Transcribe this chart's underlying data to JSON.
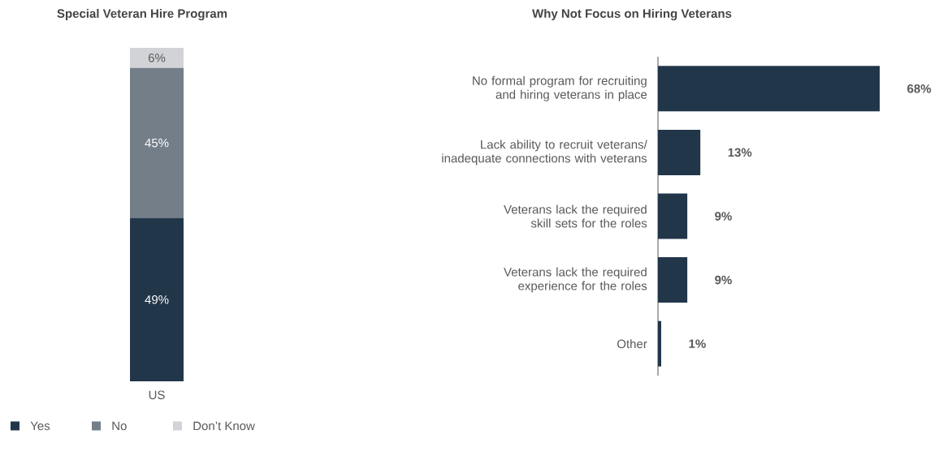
{
  "chart_data": [
    {
      "type": "bar",
      "title": "Special Veteran Hire Program",
      "categories": [
        "US"
      ],
      "stacked": true,
      "legend": "bottom",
      "series": [
        {
          "name": "Yes",
          "color": "#22364a",
          "values": [
            49
          ],
          "value_labels": [
            "49%"
          ]
        },
        {
          "name": "No",
          "color": "#737e89",
          "values": [
            45
          ],
          "value_labels": [
            "45%"
          ]
        },
        {
          "name": "Don’t Know",
          "color": "#d1d3d6",
          "values": [
            6
          ],
          "value_labels": [
            "6%"
          ]
        }
      ]
    },
    {
      "type": "bar",
      "title": "Why Not Focus on Hiring Veterans",
      "orientation": "horizontal",
      "color": "#22364a",
      "categories": [
        "No formal program for recruiting and hiring veterans in place",
        "Lack ability to recruit veterans/ inadequate connections with veterans",
        "Veterans lack the required skill sets for the roles",
        "Veterans lack the required experience for the roles",
        "Other"
      ],
      "values": [
        68,
        13,
        9,
        9,
        1
      ],
      "value_labels": [
        "68%",
        "13%",
        "9%",
        "9%",
        "1%"
      ]
    }
  ]
}
